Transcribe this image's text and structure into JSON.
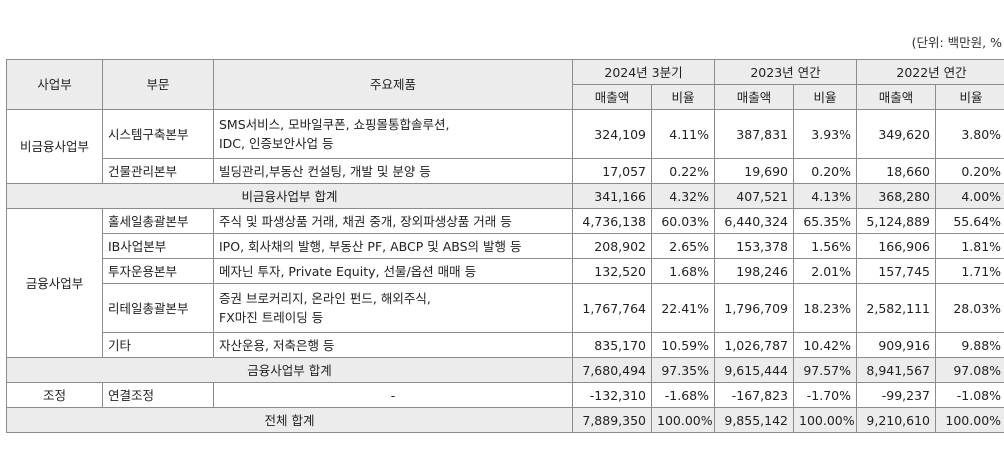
{
  "unit_note": "(단위: 백만원, %",
  "header": {
    "division": "사업부",
    "department": "부문",
    "products": "주요제품",
    "period_2024": "2024년 3분기",
    "period_2023": "2023년 연간",
    "period_2022": "2022년 연간",
    "sales": "매출액",
    "ratio": "비율"
  },
  "nonfin": {
    "division": "비금융사업부",
    "rows": [
      {
        "dept": "시스템구축본부",
        "prod1": "SMS서비스, 모바일쿠폰, 쇼핑몰통합솔루션,",
        "prod2": "IDC, 인증보안사업 등",
        "s24": "324,109",
        "r24": "4.11%",
        "s23": "387,831",
        "r23": "3.93%",
        "s22": "349,620",
        "r22": "3.80%"
      },
      {
        "dept": "건물관리본부",
        "prod1": "빌딩관리,부동산 컨설팅, 개발 및 분양 등",
        "s24": "17,057",
        "r24": "0.22%",
        "s23": "19,690",
        "r23": "0.20%",
        "s22": "18,660",
        "r22": "0.20%"
      }
    ],
    "subtotal": {
      "label": "비금융사업부 합계",
      "s24": "341,166",
      "r24": "4.32%",
      "s23": "407,521",
      "r23": "4.13%",
      "s22": "368,280",
      "r22": "4.00%"
    }
  },
  "fin": {
    "division": "금융사업부",
    "rows": [
      {
        "dept": "홀세일총괄본부",
        "prod1": "주식 및 파생상품 거래, 채권 중개, 장외파생상품 거래 등",
        "s24": "4,736,138",
        "r24": "60.03%",
        "s23": "6,440,324",
        "r23": "65.35%",
        "s22": "5,124,889",
        "r22": "55.64%"
      },
      {
        "dept": "IB사업본부",
        "prod1": "IPO, 회사채의 발행, 부동산 PF, ABCP 및 ABS의 발행 등",
        "s24": "208,902",
        "r24": "2.65%",
        "s23": "153,378",
        "r23": "1.56%",
        "s22": "166,906",
        "r22": "1.81%"
      },
      {
        "dept": "투자운용본부",
        "prod1": "메자닌 투자, Private Equity, 선물/옵션 매매 등",
        "s24": "132,520",
        "r24": "1.68%",
        "s23": "198,246",
        "r23": "2.01%",
        "s22": "157,745",
        "r22": "1.71%"
      },
      {
        "dept": "리테일총괄본부",
        "prod1": "증권 브로커리지, 온라인 펀드, 해외주식,",
        "prod2": "FX마진 트레이딩 등",
        "s24": "1,767,764",
        "r24": "22.41%",
        "s23": "1,796,709",
        "r23": "18.23%",
        "s22": "2,582,111",
        "r22": "28.03%"
      },
      {
        "dept": "기타",
        "prod1": "자산운용, 저축은행 등",
        "s24": "835,170",
        "r24": "10.59%",
        "s23": "1,026,787",
        "r23": "10.42%",
        "s22": "909,916",
        "r22": "9.88%"
      }
    ],
    "subtotal": {
      "label": "금융사업부 합계",
      "s24": "7,680,494",
      "r24": "97.35%",
      "s23": "9,615,444",
      "r23": "97.57%",
      "s22": "8,941,567",
      "r22": "97.08%"
    }
  },
  "adj": {
    "division": "조정",
    "dept": "연결조정",
    "prod1": "-",
    "s24": "-132,310",
    "r24": "-1.68%",
    "s23": "-167,823",
    "r23": "-1.70%",
    "s22": "-99,237",
    "r22": "-1.08%"
  },
  "total": {
    "label": "전체 합계",
    "s24": "7,889,350",
    "r24": "100.00%",
    "s23": "9,855,142",
    "r23": "100.00%",
    "s22": "9,210,610",
    "r22": "100.00%"
  }
}
